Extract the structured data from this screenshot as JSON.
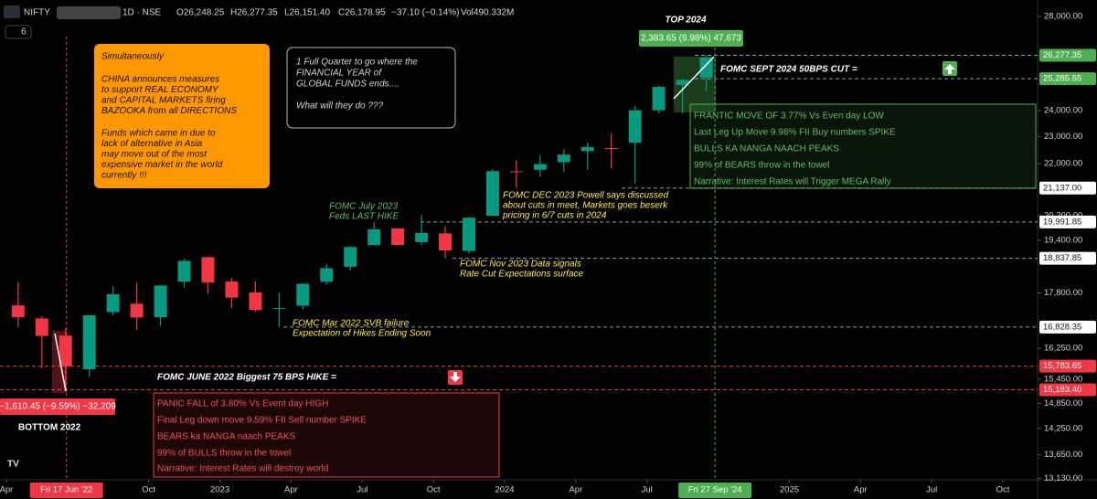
{
  "chart_data": {
    "type": "candlestick",
    "symbol": "NIFTY",
    "interval": "1D · NSE",
    "ohlc_legend": [
      "O26,248.25",
      "H26,277.35",
      "L26,151.40",
      "C26,178.95",
      "−37.10 (−0.14%)",
      "Vol490.332M"
    ],
    "indicator_count": "6",
    "log_scale": true,
    "grid": false,
    "up_color": "#089981",
    "down_color": "#f23645",
    "xlim": [
      "2022-03",
      "2025-11"
    ],
    "ylim": [
      13100,
      28770
    ],
    "yticks": [
      {
        "value": 28000,
        "label": "28,000.00"
      },
      {
        "value": 24000,
        "label": "24,000.00"
      },
      {
        "value": 23000,
        "label": "23,000.00"
      },
      {
        "value": 22000,
        "label": "22,000.00"
      },
      {
        "value": 20200,
        "label": "20,200.00"
      },
      {
        "value": 19400,
        "label": "19,400.00"
      },
      {
        "value": 17800,
        "label": "17,800.00"
      },
      {
        "value": 16250,
        "label": "16,250.00"
      },
      {
        "value": 15450,
        "label": "15,450.00"
      },
      {
        "value": 14850,
        "label": "14,850.00"
      },
      {
        "value": 14250,
        "label": "14,250.00"
      },
      {
        "value": 13650,
        "label": "13,650.00"
      },
      {
        "value": 13130,
        "label": "13,130.00"
      }
    ],
    "levels": [
      {
        "value": 26277.35,
        "label": "26,277.35",
        "color": "#4caf50"
      },
      {
        "value": 25285.55,
        "label": "25,285.55",
        "color": "#4caf50"
      },
      {
        "value": 21137,
        "label": "21,137.00",
        "color": "#ffffff"
      },
      {
        "value": 19991.85,
        "label": "19,991.85",
        "color": "#ffffff"
      },
      {
        "value": 18837.85,
        "label": "18,837.85",
        "color": "#ffffff"
      },
      {
        "value": 16828.35,
        "label": "16,828.35",
        "color": "#ffffff"
      },
      {
        "value": 15783.65,
        "label": "15,783.65",
        "color": "#f23645"
      },
      {
        "value": 15183.4,
        "label": "15,183.40",
        "color": "#f23645"
      }
    ],
    "xticks": [
      {
        "value": "2022-04",
        "label": "Apr"
      },
      {
        "value": "2022-10",
        "label": "Oct"
      },
      {
        "value": "2023-01",
        "label": "2023"
      },
      {
        "value": "2023-04",
        "label": "Apr"
      },
      {
        "value": "2023-07",
        "label": "Jul"
      },
      {
        "value": "2023-10",
        "label": "Oct"
      },
      {
        "value": "2024-01",
        "label": "2024"
      },
      {
        "value": "2024-04",
        "label": "Apr"
      },
      {
        "value": "2024-07",
        "label": "Jul"
      },
      {
        "value": "2025-01",
        "label": "2025"
      },
      {
        "value": "2025-04",
        "label": "Apr"
      },
      {
        "value": "2025-07",
        "label": "Jul"
      },
      {
        "value": "2025-10",
        "label": "Oct"
      }
    ],
    "x_markers": [
      {
        "value": "2022-06-17",
        "label": "Fri 17 Jun '22",
        "color": "#f23645"
      },
      {
        "value": "2024-09-27",
        "label": "Fri 27 Sep '24",
        "color": "#4caf50"
      }
    ],
    "x": [
      "2022-04",
      "2022-05",
      "2022-06",
      "2022-07",
      "2022-08",
      "2022-09",
      "2022-10",
      "2022-11",
      "2022-12",
      "2023-01",
      "2023-02",
      "2023-03",
      "2023-04",
      "2023-05",
      "2023-06",
      "2023-07",
      "2023-08",
      "2023-09",
      "2023-10",
      "2023-11",
      "2023-12",
      "2024-01",
      "2024-02",
      "2024-03",
      "2024-04",
      "2024-05",
      "2024-06",
      "2024-07",
      "2024-08",
      "2024-09"
    ],
    "open": [
      17436,
      17068,
      16594,
      15704,
      17244,
      17485,
      17102,
      18130,
      18871,
      18131,
      17811,
      17360,
      17428,
      18124,
      18579,
      19247,
      19784,
      19345,
      19622,
      19065,
      20194,
      21727,
      21780,
      22049,
      22455,
      22568,
      22765,
      24011,
      25030,
      25333
    ],
    "high": [
      18114,
      17132,
      16793,
      17172,
      17992,
      18096,
      18022,
      18816,
      18888,
      18251,
      18134,
      17799,
      18089,
      18662,
      19201,
      19991,
      19796,
      20222,
      19849,
      20158,
      21801,
      22124,
      22297,
      22526,
      22783,
      23111,
      24174,
      24999,
      25268,
      26277
    ],
    "low": [
      16825,
      15735,
      15183,
      15511,
      17154,
      16747,
      16855,
      17959,
      17774,
      17353,
      17255,
      16828,
      17313,
      18042,
      18464,
      19235,
      19223,
      19255,
      18837,
      18973,
      20184,
      21137,
      21530,
      21710,
      21777,
      21821,
      21281,
      23893,
      23894,
      24753
    ],
    "close": [
      17102,
      16584,
      15780,
      17158,
      17759,
      17094,
      18012,
      18758,
      18105,
      17662,
      17304,
      17360,
      18065,
      18534,
      19189,
      19754,
      19254,
      19638,
      19079,
      20133,
      21731,
      21726,
      21983,
      22327,
      22605,
      22531,
      24011,
      24951,
      25236,
      26179
    ],
    "measures": [
      "2,383.65 (9.98%) 47,673",
      "−1,610.45 (−9.59%) −32,209"
    ],
    "annotations": [
      {
        "lines": [
          "Simultaneously",
          "CHINA announces measures",
          "to support REAL ECONOMY",
          "and CAPITAL MARKETS firing",
          "BAZOOKA from all DIRECTIONS",
          "Funds which came in due to",
          "lack of alternative in Asia",
          "may move out of the most",
          "expensive market in the world",
          "currently !!!"
        ]
      },
      {
        "lines": [
          "1 Full Quarter to go where the",
          "FINANCIAL YEAR of",
          "GLOBAL FUNDS ends....",
          "What will they do ???"
        ]
      },
      {
        "lines": [
          "TOP 2024"
        ]
      },
      {
        "lines": [
          "FOMC SEPT 2024 50BPS CUT ="
        ]
      },
      {
        "lines": [
          "FRANTIC MOVE OF 3.77% Vs Even day LOW",
          "Last Leg Up Move 9.98% FII Buy numbers SPIKE",
          "BULLS KA NANGA NAACH PEAKS",
          "99% of BEARS throw in the towel",
          "Narrative: Interest Rates will Trigger MEGA Rally"
        ]
      },
      {
        "lines": [
          "FOMC July 2023",
          "Feds LAST HIKE"
        ]
      },
      {
        "lines": [
          "FOMC DEC 2023 Powell says discussed",
          "about cuts in meet, Markets goes beserk",
          "pricing in 6/7 cuts in 2024"
        ]
      },
      {
        "lines": [
          "FOMC Nov 2023 Data signals",
          "Rate Cut Expectations surface"
        ]
      },
      {
        "lines": [
          "FOMC Mar 2022 SVB failure",
          "Expectation of Hikes Ending Soon"
        ]
      },
      {
        "lines": [
          "FOMC JUNE 2022 Biggest 75 BPS HIKE ="
        ]
      },
      {
        "lines": [
          "PANIC FALL of 3.80% Vs Event day HIGH",
          "Final Leg down move 9.59% FII Sell number SPIKE",
          "BEARS ka NANGA naach PEAKS",
          "99% of BULLS throw in the towel",
          "Narrative: Interest Rates will destroy world"
        ]
      },
      {
        "lines": [
          "BOTTOM 2022"
        ]
      }
    ]
  }
}
